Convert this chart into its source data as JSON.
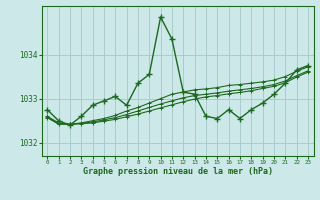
{
  "bg_color": "#cce8e8",
  "grid_color": "#aacccc",
  "line_color": "#1a6b1a",
  "marker": "+",
  "xlim": [
    -0.5,
    23.5
  ],
  "ylim": [
    1031.7,
    1035.1
  ],
  "yticks": [
    1032,
    1033,
    1034
  ],
  "xticks": [
    0,
    1,
    2,
    3,
    4,
    5,
    6,
    7,
    8,
    9,
    10,
    11,
    12,
    13,
    14,
    15,
    16,
    17,
    18,
    19,
    20,
    21,
    22,
    23
  ],
  "xlabel": "Graphe pression niveau de la mer (hPa)",
  "series": [
    [
      1032.75,
      1032.5,
      1032.4,
      1032.6,
      1032.85,
      1032.95,
      1033.05,
      1032.85,
      1033.35,
      1033.55,
      1034.85,
      1034.35,
      1033.15,
      1033.1,
      1032.6,
      1032.55,
      1032.75,
      1032.55,
      1032.75,
      1032.9,
      1033.1,
      1033.35,
      1033.65,
      1033.75
    ],
    [
      1032.6,
      1032.45,
      1032.42,
      1032.45,
      1032.5,
      1032.55,
      1032.62,
      1032.72,
      1032.8,
      1032.9,
      1033.0,
      1033.1,
      1033.15,
      1033.2,
      1033.22,
      1033.25,
      1033.3,
      1033.32,
      1033.35,
      1033.38,
      1033.42,
      1033.5,
      1033.62,
      1033.72
    ],
    [
      1032.58,
      1032.43,
      1032.42,
      1032.44,
      1032.47,
      1032.52,
      1032.57,
      1032.64,
      1032.72,
      1032.8,
      1032.88,
      1032.95,
      1033.02,
      1033.07,
      1033.1,
      1033.13,
      1033.17,
      1033.2,
      1033.23,
      1033.27,
      1033.32,
      1033.4,
      1033.52,
      1033.63
    ],
    [
      1032.57,
      1032.42,
      1032.42,
      1032.43,
      1032.45,
      1032.49,
      1032.53,
      1032.59,
      1032.65,
      1032.72,
      1032.79,
      1032.86,
      1032.93,
      1032.99,
      1033.04,
      1033.07,
      1033.11,
      1033.14,
      1033.18,
      1033.23,
      1033.28,
      1033.36,
      1033.49,
      1033.6
    ]
  ]
}
